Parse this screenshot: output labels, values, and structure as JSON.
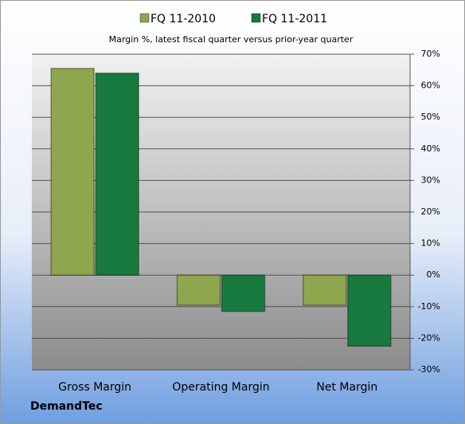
{
  "chart_data": {
    "type": "bar",
    "title": "Margin %,  latest fiscal quarter versus prior-year quarter",
    "company": "DemandTec",
    "categories": [
      "Gross Margin",
      "Operating Margin",
      "Net Margin"
    ],
    "series": [
      {
        "name": "FQ 11-2010",
        "color": "#8ea64e",
        "values": [
          65.5,
          -9.5,
          -9.5
        ]
      },
      {
        "name": "FQ 11-2011",
        "color": "#187a3e",
        "values": [
          64,
          -11.5,
          -22.5
        ]
      }
    ],
    "ylim": [
      -30,
      70
    ],
    "yticks": [
      {
        "value": -30,
        "label": "-30%"
      },
      {
        "value": -20,
        "label": "-20%"
      },
      {
        "value": -10,
        "label": "-10%"
      },
      {
        "value": 0,
        "label": "0%"
      },
      {
        "value": 10,
        "label": "10%"
      },
      {
        "value": 20,
        "label": "20%"
      },
      {
        "value": 30,
        "label": "30%"
      },
      {
        "value": 40,
        "label": "40%"
      },
      {
        "value": 50,
        "label": "50%"
      },
      {
        "value": 60,
        "label": "60%"
      },
      {
        "value": 70,
        "label": "70%"
      }
    ],
    "grid": true
  }
}
